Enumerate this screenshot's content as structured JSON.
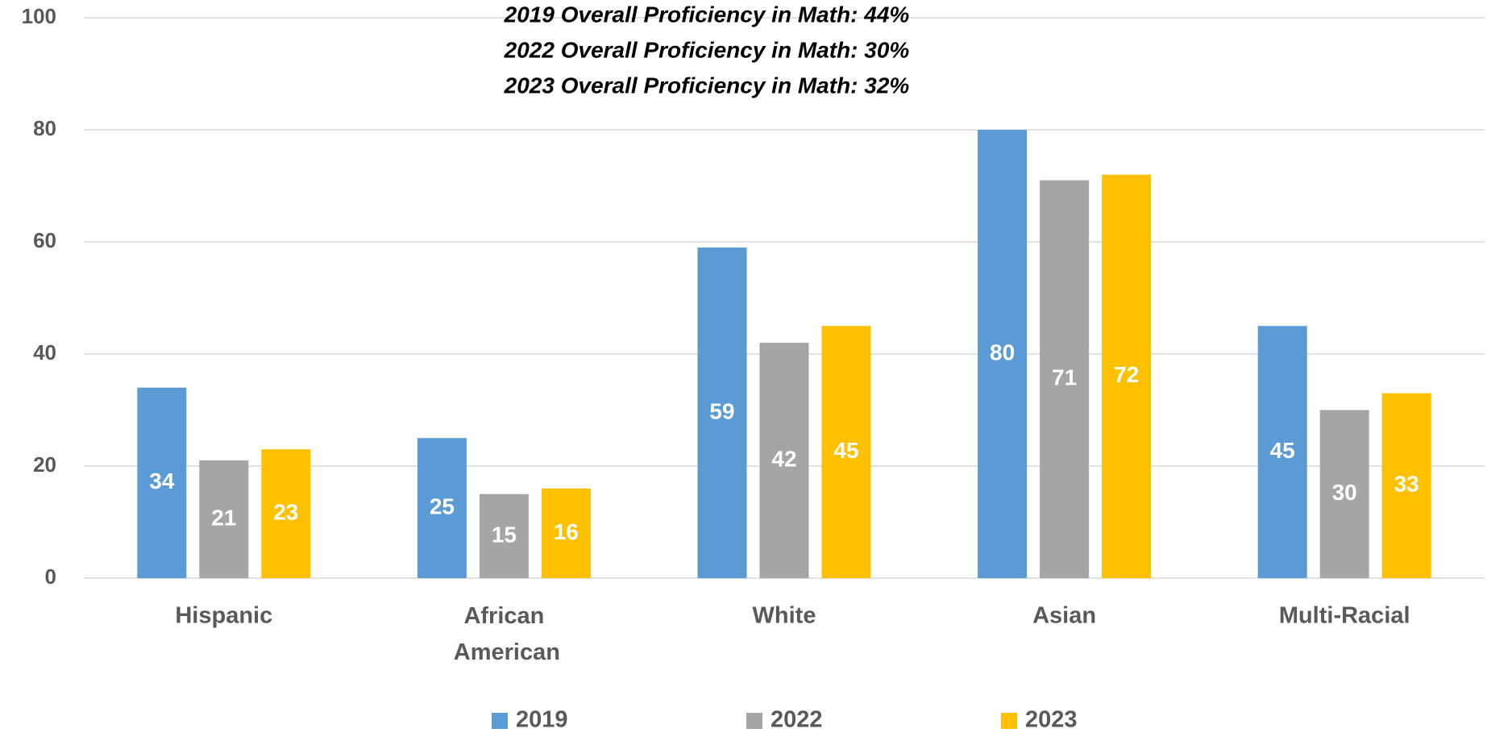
{
  "chart_data": {
    "type": "bar",
    "annotations": [
      "2019 Overall Proficiency in Math: 44%",
      "2022 Overall Proficiency in Math: 30%",
      "2023 Overall Proficiency in Math: 32%"
    ],
    "categories": [
      "Hispanic",
      "African American",
      "White",
      "Asian",
      "Multi-Racial"
    ],
    "series": [
      {
        "name": "2019",
        "color": "#5b9bd5",
        "values": [
          34,
          25,
          59,
          80,
          45
        ]
      },
      {
        "name": "2022",
        "color": "#a5a5a5",
        "values": [
          21,
          15,
          42,
          71,
          30
        ]
      },
      {
        "name": "2023",
        "color": "#ffc000",
        "values": [
          23,
          16,
          45,
          72,
          33
        ]
      }
    ],
    "ylim": [
      0,
      100
    ],
    "yticks": [
      0,
      20,
      40,
      60,
      80,
      100
    ],
    "grid": true,
    "legend": "bottom"
  }
}
